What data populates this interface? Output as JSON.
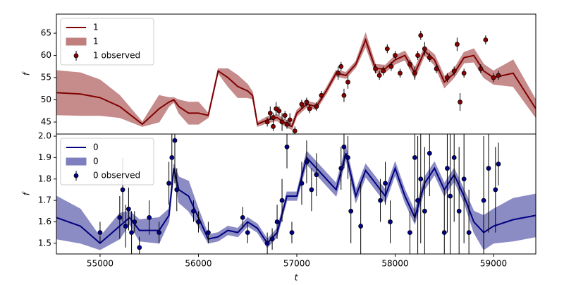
{
  "chart_data": [
    {
      "type": "line",
      "ylabel": "f",
      "xlim": [
        54556,
        59430
      ],
      "ylim": [
        42.3,
        69.3
      ],
      "yticks": [
        45,
        50,
        55,
        60,
        65
      ],
      "legend": "upper left",
      "series": [
        {
          "name": "1",
          "kind": "line",
          "color": "#800000",
          "x": [
            54556,
            54800,
            55000,
            55200,
            55430,
            55600,
            55700,
            55750,
            55800,
            55900,
            56000,
            56100,
            56200,
            56300,
            56400,
            56500,
            56550,
            56600,
            56700,
            56800,
            56900,
            56950,
            57000,
            57100,
            57200,
            57300,
            57400,
            57500,
            57600,
            57700,
            57800,
            57900,
            58000,
            58100,
            58200,
            58300,
            58400,
            58500,
            58600,
            58700,
            58800,
            58900,
            59000,
            59200,
            59430
          ],
          "values": [
            51.6,
            51.3,
            50.5,
            48.5,
            44.5,
            48,
            49.5,
            50,
            48.5,
            47,
            47,
            46.5,
            56.5,
            55,
            53,
            52,
            51,
            44.5,
            45.5,
            46,
            44.5,
            44,
            47,
            49,
            48.5,
            52,
            56,
            55.5,
            58,
            63.5,
            57,
            57,
            59,
            60,
            56,
            61,
            59,
            54,
            56,
            59.5,
            60,
            56.5,
            55,
            56,
            48
          ]
        },
        {
          "name": "1",
          "kind": "band",
          "color": "#c07f7f",
          "x": [
            54556,
            54800,
            55000,
            55200,
            55430,
            55600,
            55700,
            55750,
            55800,
            55900,
            56000,
            56100,
            56200,
            56300,
            56400,
            56500,
            56550,
            56600,
            56700,
            56800,
            56900,
            56950,
            57000,
            57100,
            57200,
            57300,
            57400,
            57500,
            57600,
            57700,
            57800,
            57900,
            58000,
            58100,
            58200,
            58300,
            58400,
            58500,
            58600,
            58700,
            58800,
            58900,
            59000,
            59200,
            59430
          ],
          "lower": [
            46.6,
            46.5,
            46.5,
            46,
            44,
            45,
            48.5,
            49.5,
            47,
            44.5,
            44.5,
            46,
            56,
            53,
            50.5,
            50.5,
            50.2,
            44,
            44.8,
            45.3,
            43.8,
            43.3,
            46.3,
            48.3,
            47.8,
            51.3,
            55.3,
            54.8,
            57.3,
            62,
            56,
            56.2,
            58,
            59,
            54.8,
            60,
            57.8,
            52.7,
            55,
            58.3,
            58.5,
            55,
            53.5,
            53,
            46
          ],
          "upper": [
            56.6,
            56.1,
            54.5,
            51,
            45,
            51,
            50.5,
            50.5,
            50,
            49.5,
            49.5,
            47,
            57,
            57,
            55.5,
            53.5,
            51.8,
            45,
            46.2,
            46.7,
            45.2,
            44.7,
            47.7,
            49.7,
            49.2,
            52.7,
            56.7,
            56.2,
            58.7,
            65,
            58,
            57.8,
            60,
            61,
            57.2,
            62,
            60.2,
            55.3,
            57,
            60.7,
            61.5,
            58,
            56.5,
            59,
            50
          ]
        },
        {
          "name": "1 observed",
          "kind": "errorbar",
          "color": "#8b0000",
          "x": [
            56700,
            56730,
            56760,
            56790,
            56820,
            56850,
            56880,
            56900,
            56930,
            56980,
            57050,
            57100,
            57130,
            57200,
            57250,
            57420,
            57450,
            57480,
            57520,
            57800,
            57840,
            57880,
            57920,
            57960,
            58000,
            58050,
            58150,
            58200,
            58230,
            58260,
            58300,
            58350,
            58420,
            58530,
            58600,
            58630,
            58660,
            58700,
            58870,
            58920,
            59000,
            59050,
            56760
          ],
          "values": [
            45,
            47,
            46,
            48,
            47.5,
            45,
            46.5,
            44.5,
            45.5,
            43,
            49,
            49.5,
            48,
            48.5,
            51,
            56,
            57.5,
            51,
            54,
            57,
            55.5,
            56.5,
            61.5,
            57.5,
            60,
            56,
            58,
            56,
            60,
            64.5,
            61.5,
            59.5,
            57,
            55,
            56.5,
            62.5,
            49.5,
            56,
            57,
            63.5,
            55,
            55.5,
            44
          ],
          "errors": [
            1,
            1.5,
            1,
            1.5,
            1,
            2,
            1,
            1,
            1.5,
            1,
            1,
            1,
            1,
            1,
            1,
            1.5,
            1,
            1.5,
            1.5,
            1,
            1,
            1,
            1,
            1,
            1,
            1,
            1,
            1.5,
            1,
            1,
            1.5,
            1,
            1,
            1,
            1,
            1.5,
            2,
            1,
            1,
            1,
            1,
            1,
            1
          ]
        }
      ]
    },
    {
      "type": "line",
      "xlabel": "t",
      "ylabel": "f",
      "xlim": [
        54556,
        59430
      ],
      "ylim": [
        1.45,
        2.01
      ],
      "xticks": [
        55000,
        56000,
        57000,
        58000,
        59000
      ],
      "yticks": [
        1.5,
        1.6,
        1.7,
        1.8,
        1.9,
        {
          "value": 2,
          "label": "2.0"
        }
      ],
      "legend": "upper left",
      "series": [
        {
          "name": "0",
          "kind": "line",
          "color": "#000080",
          "x": [
            54556,
            54800,
            55000,
            55200,
            55300,
            55400,
            55600,
            55700,
            55750,
            55800,
            55900,
            56000,
            56100,
            56200,
            56300,
            56400,
            56500,
            56600,
            56700,
            56800,
            56900,
            57000,
            57100,
            57200,
            57300,
            57400,
            57500,
            57600,
            57700,
            57800,
            57900,
            58000,
            58100,
            58200,
            58300,
            58400,
            58500,
            58600,
            58700,
            58800,
            58900,
            59000,
            59200,
            59430
          ],
          "values": [
            1.62,
            1.58,
            1.5,
            1.58,
            1.62,
            1.56,
            1.56,
            1.63,
            1.85,
            1.75,
            1.72,
            1.62,
            1.52,
            1.53,
            1.56,
            1.55,
            1.6,
            1.57,
            1.5,
            1.55,
            1.72,
            1.72,
            1.9,
            1.85,
            1.8,
            1.75,
            1.92,
            1.72,
            1.84,
            1.78,
            1.72,
            1.85,
            1.72,
            1.62,
            1.78,
            1.85,
            1.75,
            1.82,
            1.72,
            1.6,
            1.55,
            1.58,
            1.61,
            1.63
          ]
        },
        {
          "name": "0",
          "kind": "band",
          "color": "#7f7fbf",
          "x": [
            54556,
            54800,
            55000,
            55200,
            55300,
            55400,
            55600,
            55700,
            55750,
            55800,
            55900,
            56000,
            56100,
            56200,
            56300,
            56400,
            56500,
            56600,
            56700,
            56800,
            56900,
            57000,
            57100,
            57200,
            57300,
            57400,
            57500,
            57600,
            57700,
            57800,
            57900,
            58000,
            58100,
            58200,
            58300,
            58400,
            58500,
            58600,
            58700,
            58800,
            58900,
            59000,
            59200,
            59430
          ],
          "lower": [
            1.52,
            1.5,
            1.47,
            1.52,
            1.59,
            1.51,
            1.5,
            1.6,
            1.83,
            1.69,
            1.65,
            1.58,
            1.5,
            1.51,
            1.54,
            1.53,
            1.58,
            1.55,
            1.48,
            1.53,
            1.7,
            1.7,
            1.87,
            1.82,
            1.77,
            1.72,
            1.89,
            1.69,
            1.81,
            1.75,
            1.69,
            1.82,
            1.69,
            1.59,
            1.75,
            1.82,
            1.72,
            1.79,
            1.69,
            1.55,
            1.47,
            1.5,
            1.51,
            1.53
          ],
          "upper": [
            1.72,
            1.66,
            1.53,
            1.64,
            1.65,
            1.61,
            1.62,
            1.66,
            1.87,
            1.81,
            1.79,
            1.66,
            1.54,
            1.55,
            1.58,
            1.57,
            1.62,
            1.59,
            1.52,
            1.57,
            1.74,
            1.74,
            1.93,
            1.88,
            1.83,
            1.78,
            1.95,
            1.75,
            1.87,
            1.81,
            1.75,
            1.88,
            1.75,
            1.65,
            1.81,
            1.88,
            1.78,
            1.85,
            1.75,
            1.65,
            1.63,
            1.66,
            1.71,
            1.73
          ]
        },
        {
          "name": "0 observed",
          "kind": "errorbar",
          "color": "#00008b",
          "x": [
            55000,
            55200,
            55230,
            55260,
            55290,
            55320,
            55350,
            55400,
            55500,
            55600,
            55700,
            55730,
            55760,
            55780,
            55950,
            56000,
            56100,
            56450,
            56500,
            56700,
            56750,
            56800,
            56850,
            56900,
            56950,
            57050,
            57100,
            57150,
            57200,
            57450,
            57480,
            57520,
            57550,
            57650,
            57850,
            57900,
            57950,
            58150,
            58200,
            58230,
            58260,
            58300,
            58350,
            58500,
            58530,
            58560,
            58600,
            58650,
            58700,
            58750,
            58900,
            58950,
            59020,
            59050
          ],
          "values": [
            1.55,
            1.62,
            1.75,
            1.58,
            1.66,
            1.55,
            1.6,
            1.48,
            1.62,
            1.55,
            1.78,
            1.9,
            1.98,
            1.75,
            1.65,
            1.6,
            1.55,
            1.62,
            1.55,
            1.5,
            1.52,
            1.6,
            1.7,
            1.95,
            1.55,
            1.78,
            1.88,
            1.75,
            1.82,
            1.85,
            1.95,
            1.9,
            1.65,
            1.58,
            1.7,
            1.78,
            1.6,
            1.55,
            1.9,
            1.7,
            1.8,
            1.65,
            1.92,
            1.55,
            1.85,
            1.72,
            1.9,
            1.65,
            1.8,
            1.55,
            1.7,
            1.85,
            1.75,
            1.87
          ],
          "errors": [
            0.05,
            0.1,
            0.15,
            0.1,
            0.1,
            0.1,
            0.05,
            0.05,
            0.08,
            0.05,
            0.1,
            0.15,
            0.2,
            0.1,
            0.05,
            0.05,
            0.05,
            0.05,
            0.05,
            0.05,
            0.05,
            0.08,
            0.1,
            0.1,
            0.05,
            0.1,
            0.1,
            0.1,
            0.1,
            0.1,
            0.1,
            0.1,
            0.15,
            0.2,
            0.1,
            0.1,
            0.1,
            0.1,
            0.3,
            0.3,
            0.3,
            0.3,
            0.2,
            0.2,
            0.3,
            0.3,
            0.3,
            0.3,
            0.3,
            0.2,
            0.3,
            0.3,
            0.2,
            0.1
          ]
        }
      ]
    }
  ]
}
